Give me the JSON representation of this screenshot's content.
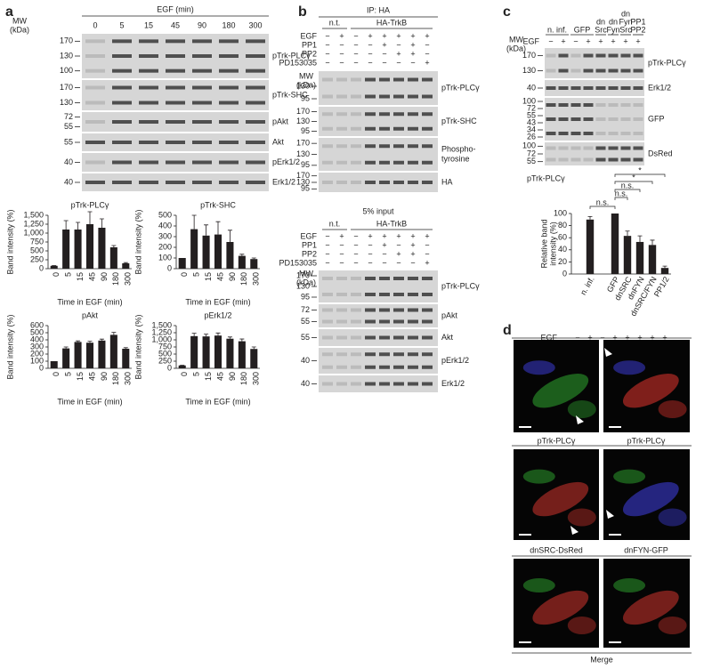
{
  "panels": [
    "a",
    "b",
    "c",
    "d"
  ],
  "a": {
    "mw_label": [
      "MW",
      "(kDa)"
    ],
    "header": "EGF (min)",
    "lanes": [
      "0",
      "5",
      "15",
      "45",
      "90",
      "180",
      "300"
    ],
    "blots": [
      {
        "name": "pTrk-PLCγ",
        "mw": [
          "170",
          "130",
          "100"
        ]
      },
      {
        "name": "pTrk-SHC",
        "mw": [
          "170",
          "130"
        ]
      },
      {
        "name": "pAkt",
        "mw": [
          "72",
          "55"
        ]
      },
      {
        "name": "Akt",
        "mw": [
          "55"
        ]
      },
      {
        "name": "pErk1/2",
        "mw": [
          "40"
        ]
      },
      {
        "name": "Erk1/2",
        "mw": [
          "40"
        ]
      }
    ]
  },
  "b": {
    "sections": [
      {
        "title": "IP: HA",
        "groups": [
          "n.t.",
          "HA-TrkB"
        ],
        "mw_label": [
          "MW",
          "(kDa)"
        ],
        "treatments": [
          {
            "name": "EGF",
            "signs": [
              "−",
              "+",
              "−",
              "+",
              "+",
              "+",
              "+",
              "+"
            ]
          },
          {
            "name": "PP1",
            "signs": [
              "−",
              "−",
              "−",
              "−",
              "+",
              "−",
              "+",
              "−"
            ]
          },
          {
            "name": "PP2",
            "signs": [
              "−",
              "−",
              "−",
              "−",
              "−",
              "+",
              "+",
              "−"
            ]
          },
          {
            "name": "PD153035",
            "signs": [
              "−",
              "−",
              "−",
              "−",
              "−",
              "−",
              "−",
              "+"
            ]
          }
        ],
        "blots": [
          {
            "name": [
              "pTrk-PLCγ"
            ],
            "mw": [
              "130",
              "95"
            ]
          },
          {
            "name": [
              "pTrk-SHC"
            ],
            "mw": [
              "170",
              "130",
              "95"
            ]
          },
          {
            "name": [
              "Phospho-",
              "tyrosine"
            ],
            "mw": [
              "170",
              "130",
              "95"
            ]
          },
          {
            "name": [
              "HA"
            ],
            "mw": [
              "170",
              "130",
              "95"
            ]
          }
        ]
      },
      {
        "title": "5% input",
        "groups": [
          "n.t.",
          "HA-TrkB"
        ],
        "mw_label": [
          "MW",
          "(kDa)"
        ],
        "treatments": [
          {
            "name": "EGF",
            "signs": [
              "−",
              "+",
              "−",
              "+",
              "+",
              "+",
              "+",
              "+"
            ]
          },
          {
            "name": "PP1",
            "signs": [
              "−",
              "−",
              "−",
              "−",
              "+",
              "−",
              "+",
              "−"
            ]
          },
          {
            "name": "PP2",
            "signs": [
              "−",
              "−",
              "−",
              "−",
              "−",
              "+",
              "+",
              "−"
            ]
          },
          {
            "name": "PD153035",
            "signs": [
              "−",
              "−",
              "−",
              "−",
              "−",
              "−",
              "−",
              "+"
            ]
          }
        ],
        "blots": [
          {
            "name": [
              "pTrk-PLCγ"
            ],
            "mw": [
              "170",
              "130",
              "95"
            ]
          },
          {
            "name": [
              "pAkt"
            ],
            "mw": [
              "72",
              "55"
            ]
          },
          {
            "name": [
              "Akt"
            ],
            "mw": [
              "55"
            ]
          },
          {
            "name": [
              "pErk1/2"
            ],
            "mw": [
              "40"
            ]
          },
          {
            "name": [
              "Erk1/2"
            ],
            "mw": [
              "40"
            ]
          }
        ]
      }
    ]
  },
  "c": {
    "mw_label": [
      "MW",
      "(kDa)"
    ],
    "egf_label": "EGF",
    "egf": [
      "−",
      "+",
      "−",
      "+",
      "+",
      "+",
      "+",
      "+"
    ],
    "groups": [
      [
        "n. inf."
      ],
      [
        "GFP"
      ],
      [
        "dn",
        "Src"
      ],
      [
        "dn",
        "Fyn"
      ],
      [
        "dn",
        "Fyn",
        "Src"
      ],
      [
        "PP1",
        "PP2"
      ]
    ],
    "blots": [
      {
        "name": "pTrk-PLCγ",
        "mw": [
          "170",
          "130"
        ]
      },
      {
        "name": "Erk1/2",
        "mw": [
          "40"
        ]
      },
      {
        "name": "GFP",
        "mw": [
          "100",
          "72",
          "55",
          "43",
          "34",
          "26"
        ]
      },
      {
        "name": "DsRed",
        "mw": [
          "100",
          "72",
          "55"
        ]
      }
    ]
  },
  "d": {
    "labels": [
      {
        "text": "pTrk-PLCγ",
        "color": "#3aa63a"
      },
      {
        "text": "pTrk-PLCγ",
        "color": "#e0302a"
      },
      {
        "text": "dnSRC-DsRed",
        "color": "#e0302a"
      },
      {
        "text": "dnFYN-GFP",
        "color": "#3aa63a"
      },
      {
        "text": "Merge",
        "color": "#222222"
      }
    ]
  },
  "chart_data": [
    {
      "type": "bar",
      "title": "pTrk-PLCγ",
      "y_label": "Band intensity (%)",
      "x_label": "Time in EGF (min)",
      "color": "#231f20",
      "categories": [
        "0",
        "5",
        "15",
        "45",
        "90",
        "180",
        "300"
      ],
      "values": [
        80,
        1100,
        1100,
        1250,
        1150,
        600,
        150
      ],
      "errors": [
        10,
        250,
        200,
        350,
        250,
        50,
        20
      ],
      "ylim": [
        0,
        1500
      ],
      "yticks": [
        0,
        250,
        500,
        750,
        {
          "value": 1000,
          "label": "1,000"
        },
        {
          "value": 1250,
          "label": "1,250"
        },
        {
          "value": 1500,
          "label": "1,500"
        }
      ]
    },
    {
      "type": "bar",
      "title": "pTrk-SHC",
      "y_label": "Band intensity (%)",
      "x_label": "Time in EGF (min)",
      "color": "#231f20",
      "categories": [
        "0",
        "5",
        "15",
        "45",
        "90",
        "180",
        "300"
      ],
      "values": [
        100,
        370,
        310,
        320,
        250,
        120,
        90
      ],
      "errors": [
        0,
        130,
        100,
        120,
        110,
        15,
        10
      ],
      "ylim": [
        0,
        500
      ],
      "yticks": [
        0,
        100,
        200,
        300,
        400,
        500
      ]
    },
    {
      "type": "bar",
      "title": "pAkt",
      "y_label": "Band intensity (%)",
      "x_label": "Time in EGF (min)",
      "color": "#231f20",
      "categories": [
        "0",
        "5",
        "15",
        "45",
        "90",
        "180",
        "300"
      ],
      "values": [
        100,
        280,
        370,
        360,
        390,
        470,
        275
      ],
      "errors": [
        0,
        20,
        15,
        20,
        20,
        35,
        15
      ],
      "ylim": [
        0,
        600
      ],
      "yticks": [
        0,
        100,
        200,
        300,
        400,
        500,
        600
      ]
    },
    {
      "type": "bar",
      "title": "pErk1/2",
      "y_label": "Band intensity (%)",
      "x_label": "Time in EGF (min)",
      "color": "#231f20",
      "categories": [
        "0",
        "5",
        "15",
        "45",
        "90",
        "180",
        "300"
      ],
      "values": [
        100,
        1130,
        1120,
        1150,
        1040,
        950,
        680
      ],
      "errors": [
        10,
        100,
        80,
        90,
        60,
        80,
        70
      ],
      "ylim": [
        0,
        1500
      ],
      "yticks": [
        0,
        250,
        500,
        750,
        {
          "value": 1000,
          "label": "1,000"
        },
        {
          "value": 1250,
          "label": "1,250"
        },
        {
          "value": 1500,
          "label": "1,500"
        }
      ]
    },
    {
      "type": "bar",
      "title": "pTrk-PLCγ",
      "y_label": [
        "Relative band",
        "intensity (%)"
      ],
      "color": "#231f20",
      "egf_label": "EGF",
      "egf": [
        "−",
        "+",
        "−",
        "+",
        "+",
        "+",
        "+",
        "+"
      ],
      "categories": [
        null,
        "n. inf.",
        null,
        "GFP",
        "dnSRC",
        "dnFYN",
        "dnSRC/FYN",
        "PP1/2"
      ],
      "values": [
        0,
        90,
        0,
        100,
        63,
        53,
        48,
        10
      ],
      "errors": [
        0,
        5,
        0,
        0,
        8,
        10,
        8,
        3
      ],
      "ylim": [
        0,
        100
      ],
      "yticks": [
        0,
        20,
        40,
        60,
        80,
        100
      ],
      "annotations": [
        "*",
        "*",
        "n.s.",
        "n.s.",
        "n.s."
      ]
    }
  ]
}
